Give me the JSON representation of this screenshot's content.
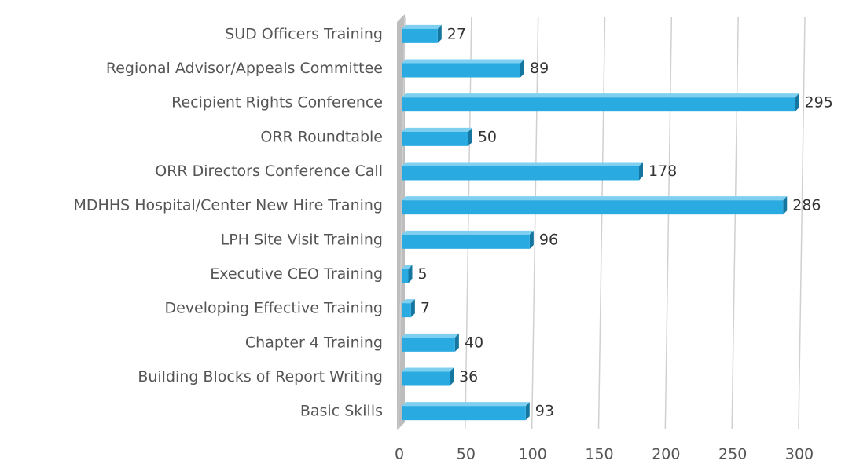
{
  "chart_data": {
    "type": "bar",
    "orientation": "horizontal",
    "categories": [
      "SUD Officers Training",
      "Regional Advisor/Appeals Committee",
      "Recipient Rights Conference",
      "ORR Roundtable",
      "ORR Directors Conference Call",
      "MDHHS Hospital/Center New Hire Traning",
      "LPH Site Visit Training",
      "Executive CEO Training",
      "Developing Effective Training",
      "Chapter 4 Training",
      "Building Blocks of Report Writing",
      "Basic Skills"
    ],
    "values": [
      27,
      89,
      295,
      50,
      178,
      286,
      96,
      5,
      7,
      40,
      36,
      93
    ],
    "color": "#29abe2",
    "xlim": [
      0,
      300
    ],
    "xticks": [
      0,
      50,
      100,
      150,
      200,
      250,
      300
    ],
    "grid": true
  }
}
